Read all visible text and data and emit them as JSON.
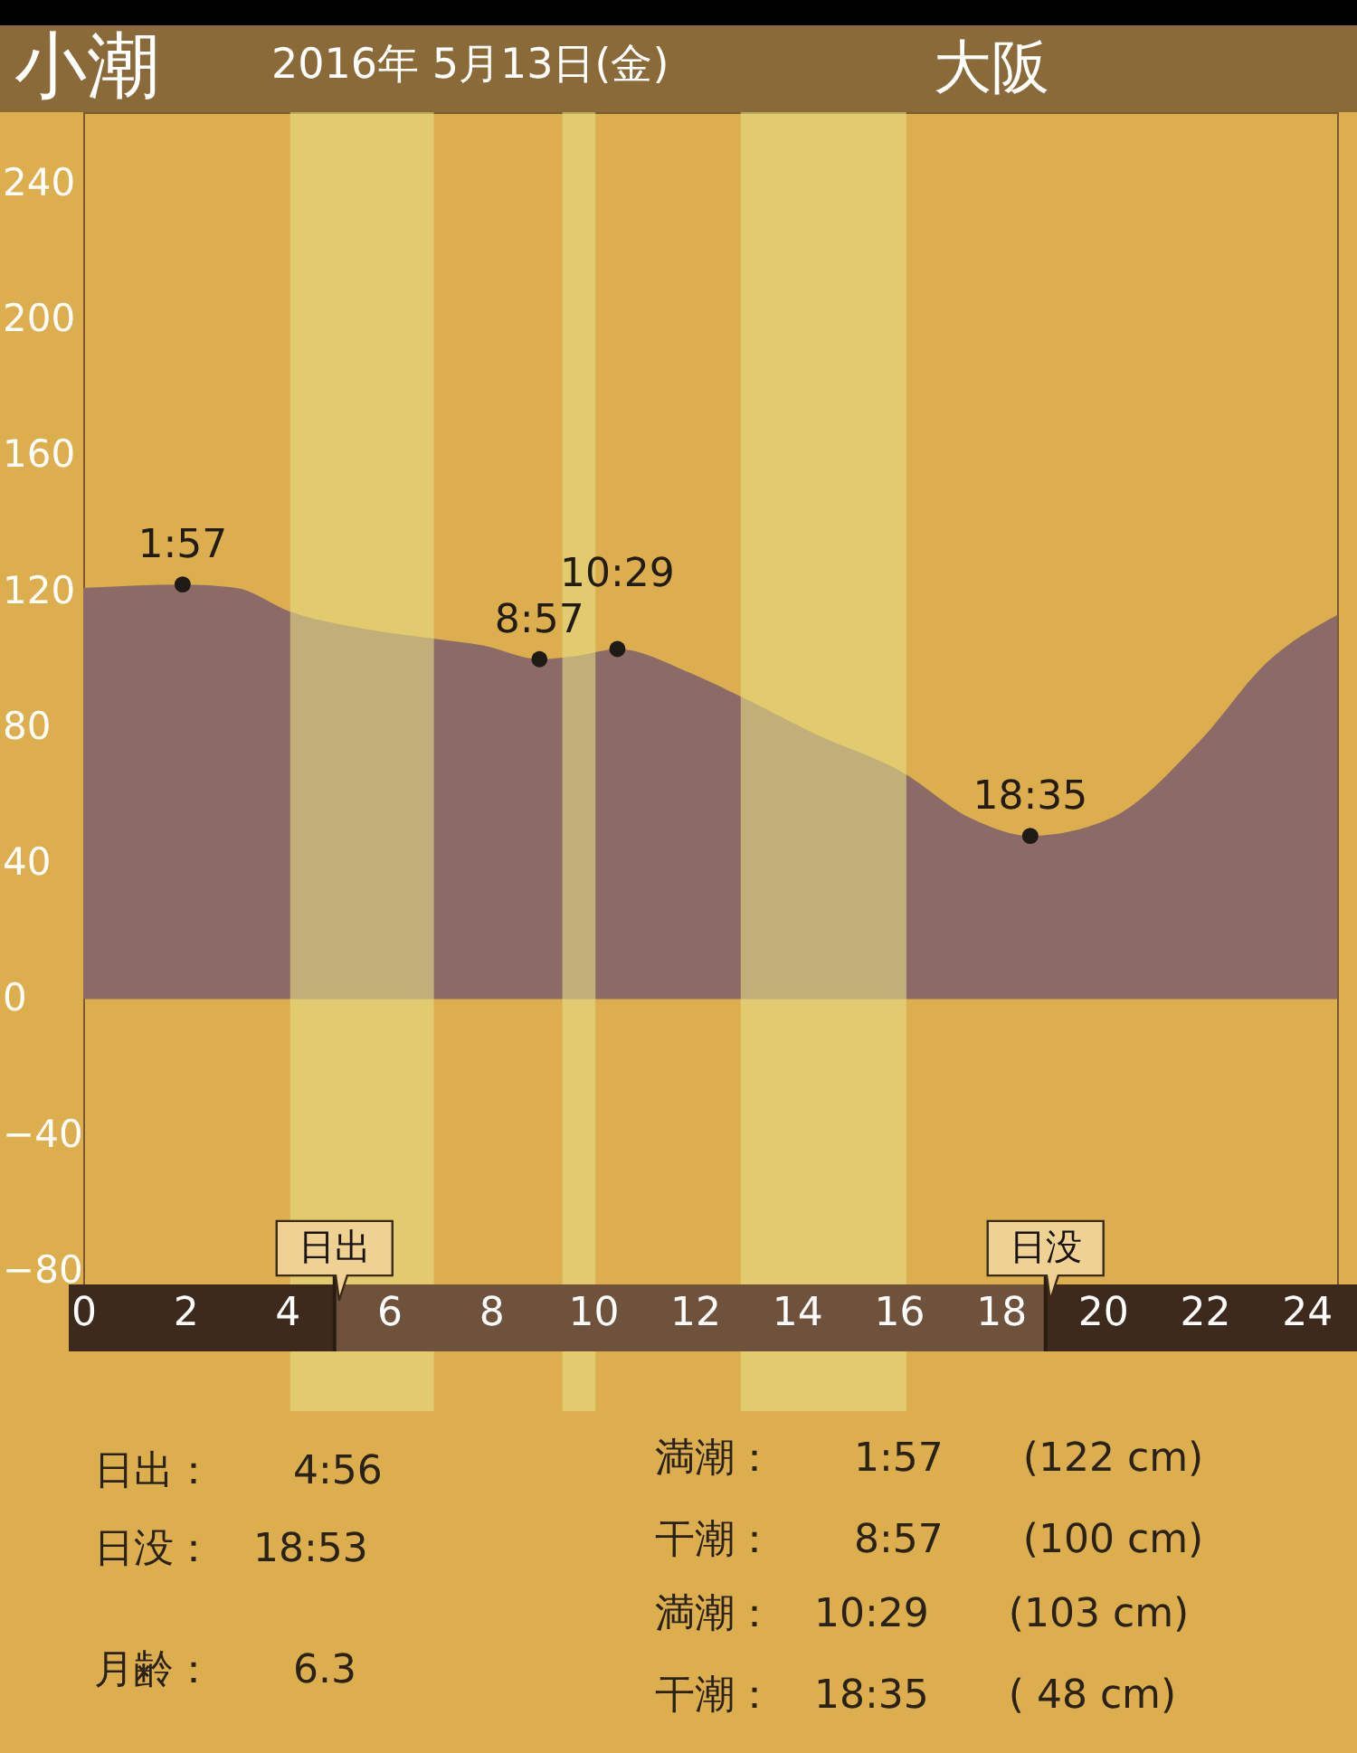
{
  "chart_data": {
    "type": "area",
    "title": "小潮",
    "subtitle": "2016年 5月13日(金)",
    "annotations": [
      "大阪",
      "日出：　　4:56",
      "日没：　18:53",
      "月齢：　　6.3",
      "満潮：　　1:57　　(122 cm)",
      "干潮：　　8:57　　(100 cm)",
      "満潮：　10:29　　(103 cm)",
      "干潮：　18:35　　( 48 cm)",
      {
        "text": "1:57",
        "x": 1.95,
        "y": 122
      },
      {
        "text": "8:57",
        "x": 8.95,
        "y": 100
      },
      {
        "text": "10:29",
        "x": 10.48,
        "y": 103
      },
      {
        "text": "18:35",
        "x": 18.58,
        "y": 48
      }
    ],
    "series": [
      {
        "color": "#8c6a68",
        "x": [
          0,
          1.95,
          3.0,
          4.06,
          5.48,
          6.9,
          7.86,
          8.95,
          9.7,
          10.48,
          11.9,
          12.9,
          14.36,
          16.04,
          17.44,
          18.58,
          20.13,
          21.91,
          23.22,
          24.6
        ],
        "values": [
          121,
          122,
          121,
          114,
          109,
          106,
          104,
          100,
          101,
          103,
          96,
          89,
          78,
          67,
          53,
          48,
          53,
          76,
          99,
          113
        ]
      },
      {
        "type": "scatter",
        "marker": "circle",
        "color": "#1e1a14",
        "x": [
          1.95,
          8.95,
          10.48,
          18.58
        ],
        "values": [
          122,
          100,
          103,
          48
        ]
      }
    ],
    "xlim": [
      0,
      24.6
    ],
    "xticks": [
      0,
      2,
      4,
      6,
      8,
      10,
      12,
      14,
      16,
      18,
      20,
      22,
      24
    ],
    "ylim": [
      -84,
      261
    ],
    "yticks": [
      -80,
      -40,
      0,
      40,
      80,
      120,
      160,
      200,
      240
    ],
    "bands": [
      {
        "axis": "x",
        "from": 4.06,
        "to": 6.88,
        "color": "#e6dc84"
      },
      {
        "axis": "x",
        "from": 9.4,
        "to": 10.05,
        "color": "#e6dc84"
      },
      {
        "axis": "x",
        "from": 12.9,
        "to": 16.15,
        "color": "#e6dc84"
      }
    ],
    "ref_lines": [
      {
        "axis": "x",
        "value": 4.93,
        "label": "日出",
        "color": "#2a1c12"
      },
      {
        "axis": "x",
        "value": 18.88,
        "label": "日没",
        "color": "#2a1c12"
      }
    ]
  }
}
